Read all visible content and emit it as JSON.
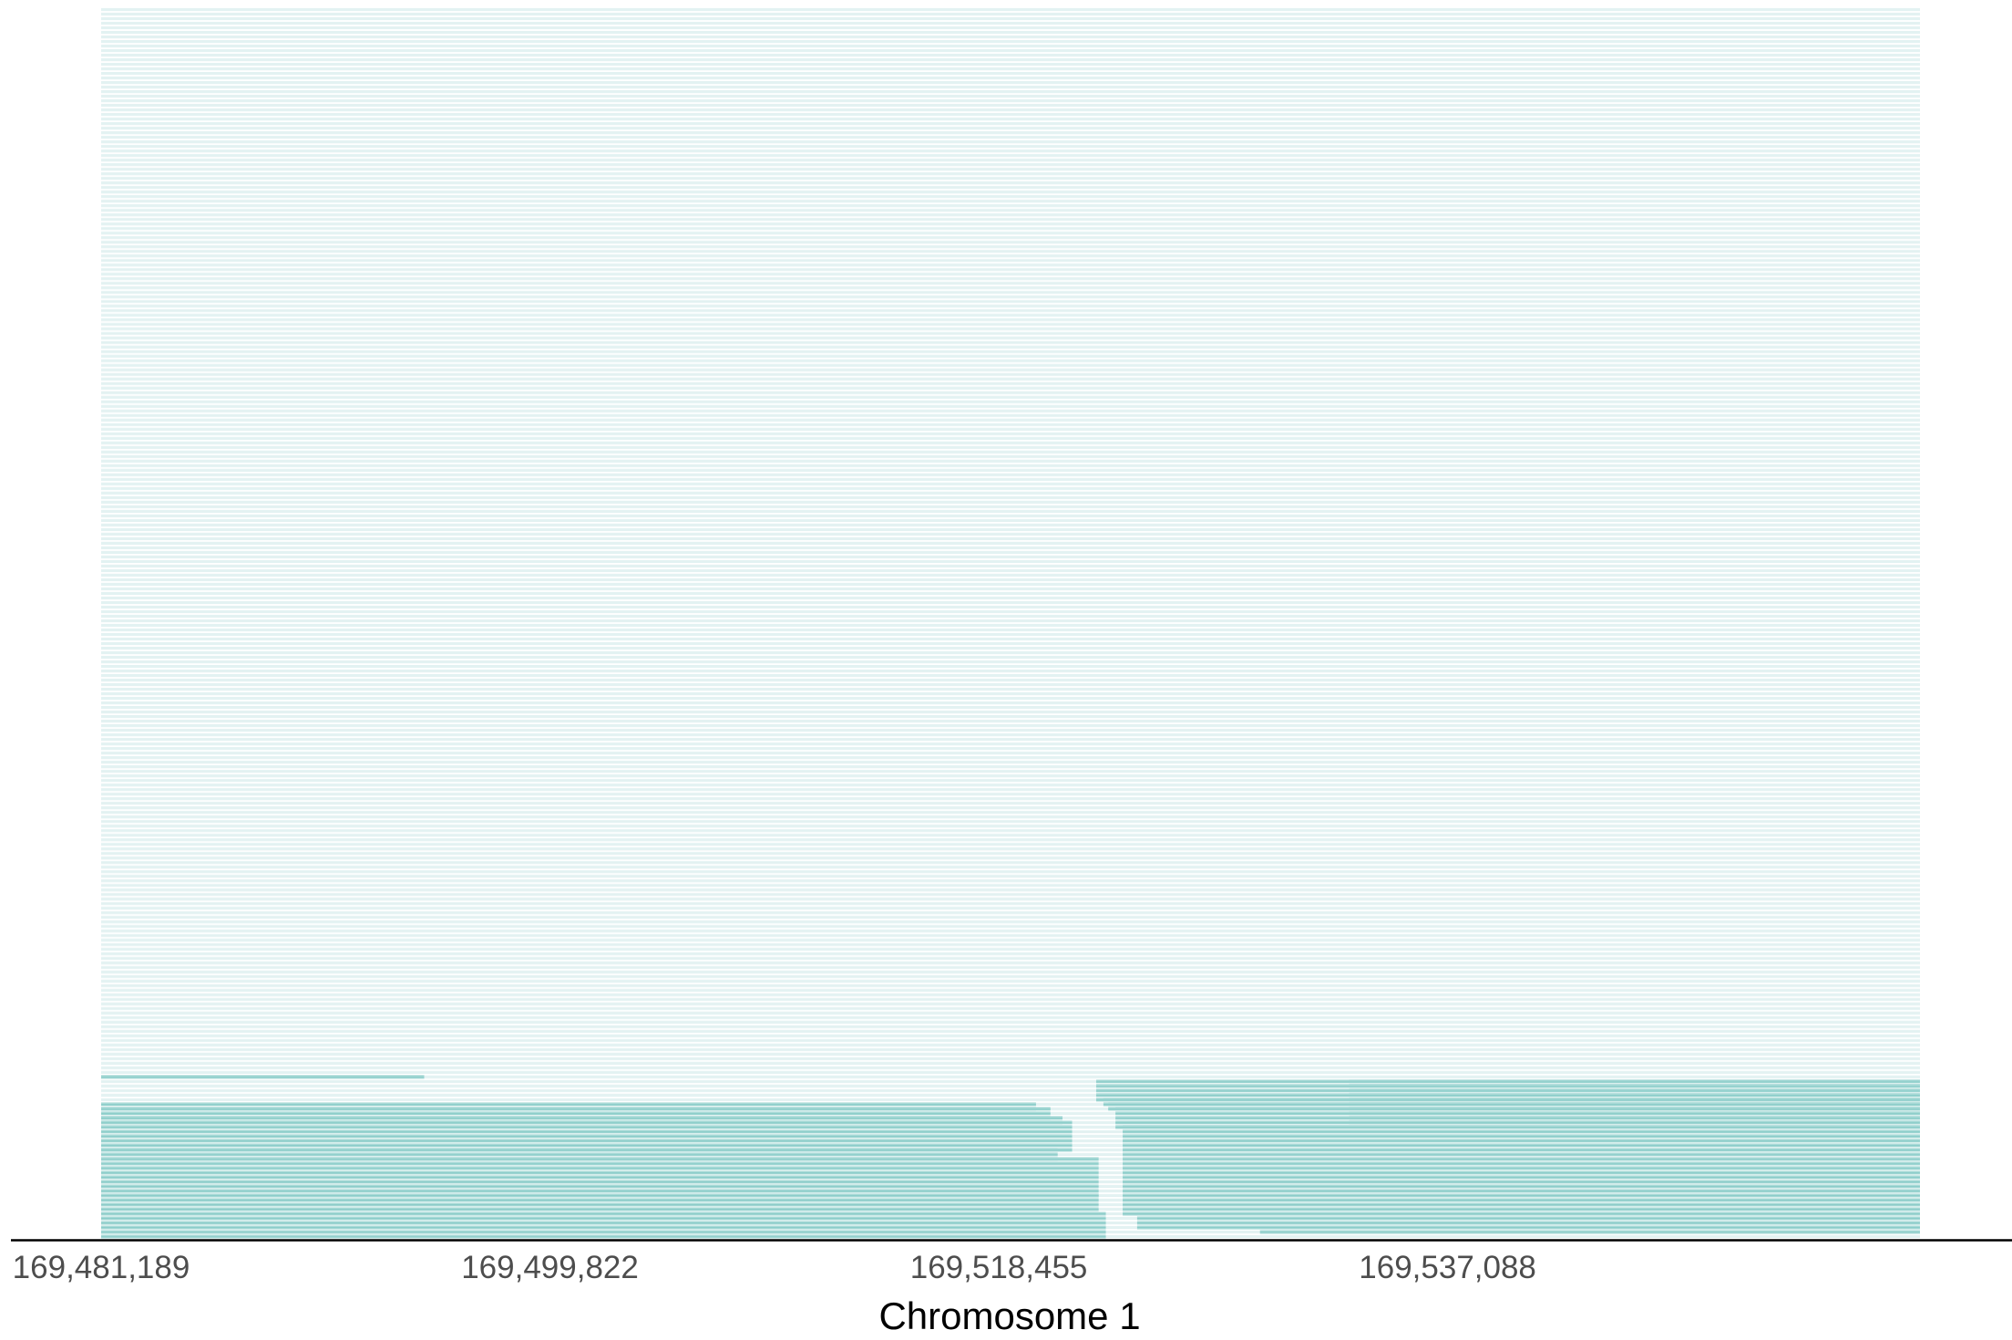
{
  "chart_data": {
    "type": "haplotype-track",
    "title": "",
    "xlabel": "Chromosome 1",
    "ylabel": "",
    "xlim": [
      169481189,
      169556700
    ],
    "x_ticks": [
      169481189,
      169499822,
      169518455,
      169537088
    ],
    "x_tick_labels": [
      "169,481,189",
      "169,499,822",
      "169,518,455",
      "169,537,088"
    ],
    "y_axis_shown": false,
    "grid": false,
    "legend": "none",
    "n_tracks": 270,
    "colors": {
      "background_track": "#e3f2f2",
      "highlight_track": "#a4d8d5",
      "highlight_track_line": "#7cc6c2",
      "axis_line": "#000000",
      "tick_text": "#4d4d4d"
    },
    "highlight_segments": [
      {
        "tracks": [
          35,
          35
        ],
        "start": 169481189,
        "end": 169494600
      },
      {
        "tracks": [
          1,
          2
        ],
        "start": 169529300,
        "end": 169556700
      },
      {
        "tracks": [
          2,
          5
        ],
        "start": 169524200,
        "end": 169556700
      },
      {
        "tracks": [
          5,
          24
        ],
        "start": 169523600,
        "end": 169556700
      },
      {
        "tracks": [
          24,
          28
        ],
        "start": 169523300,
        "end": 169556700
      },
      {
        "tracks": [
          28,
          29
        ],
        "start": 169523000,
        "end": 169556700
      },
      {
        "tracks": [
          29,
          30
        ],
        "start": 169522800,
        "end": 169556700
      },
      {
        "tracks": [
          30,
          34
        ],
        "start": 169522500,
        "end": 169556700
      },
      {
        "tracks": [
          25,
          34
        ],
        "start": 169533000,
        "end": 169556700
      },
      {
        "tracks": [
          0,
          5
        ],
        "start": 169481189,
        "end": 169522900
      },
      {
        "tracks": [
          5,
          9
        ],
        "start": 169481189,
        "end": 169522600
      },
      {
        "tracks": [
          9,
          17
        ],
        "start": 169481189,
        "end": 169522600
      },
      {
        "tracks": [
          17,
          19
        ],
        "start": 169481189,
        "end": 169520900
      },
      {
        "tracks": [
          19,
          25
        ],
        "start": 169481189,
        "end": 169521500
      },
      {
        "tracks": [
          25,
          26
        ],
        "start": 169481189,
        "end": 169521100
      },
      {
        "tracks": [
          26,
          28
        ],
        "start": 169481189,
        "end": 169520600
      },
      {
        "tracks": [
          28,
          29
        ],
        "start": 169481189,
        "end": 169520000
      }
    ]
  }
}
